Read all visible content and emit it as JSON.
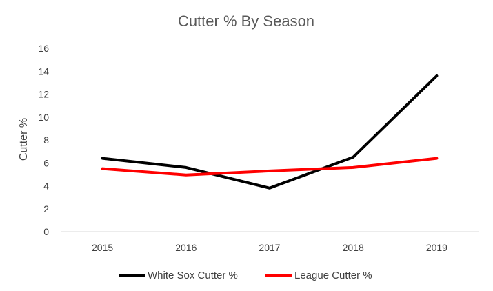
{
  "chart_data": {
    "type": "line",
    "title": "Cutter % By Season",
    "xlabel": "",
    "ylabel": "Cutter %",
    "categories": [
      "2015",
      "2016",
      "2017",
      "2018",
      "2019"
    ],
    "ylim": [
      0,
      16
    ],
    "yticks": [
      "0",
      "2",
      "4",
      "6",
      "8",
      "10",
      "12",
      "14",
      "16"
    ],
    "grid": false,
    "legend_position": "bottom",
    "series": [
      {
        "name": "White Sox Cutter %",
        "color": "#000000",
        "values": [
          6.4,
          5.6,
          3.8,
          6.5,
          13.6
        ]
      },
      {
        "name": "League Cutter %",
        "color": "#ff0000",
        "values": [
          5.5,
          4.95,
          5.3,
          5.6,
          6.4
        ]
      }
    ]
  }
}
